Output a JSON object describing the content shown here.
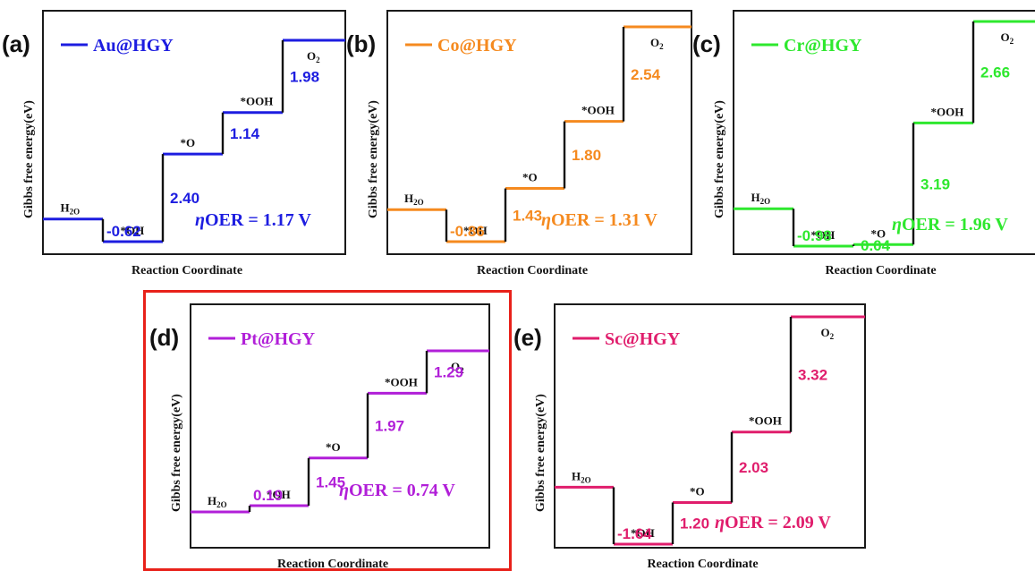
{
  "common": {
    "ylabel": "Gibbs free energy(eV)",
    "xlabel": "Reaction Coordinate",
    "eta_prefix": "η",
    "eta_word": "OER = "
  },
  "chart_data": [
    {
      "type": "line",
      "panel": "(a)",
      "title": "",
      "legend": "Au@HGY",
      "color": "#1d1de0",
      "xlabel": "Reaction Coordinate",
      "ylabel": "Gibbs free energy(eV)",
      "x": [
        "H2O",
        "*OH",
        "*O",
        "*OOH",
        "O2"
      ],
      "levels": [
        0,
        -0.62,
        1.78,
        2.92,
        4.9
      ],
      "step_labels": [
        "-0.62",
        "2.40",
        "1.14",
        "1.98"
      ],
      "overpotential": "1.17 V",
      "ylim": [
        -1.4,
        5.0
      ],
      "grid": false,
      "legend_position": "top-left"
    },
    {
      "type": "line",
      "panel": "(b)",
      "title": "",
      "legend": "Co@HGY",
      "color": "#f58a1f",
      "xlabel": "Reaction Coordinate",
      "ylabel": "Gibbs free energy(eV)",
      "x": [
        "H2O",
        "*OH",
        "*O",
        "*OOH",
        "O2"
      ],
      "levels": [
        0,
        -0.86,
        0.57,
        2.37,
        4.91
      ],
      "step_labels": [
        "-0.86",
        "1.43",
        "1.80",
        "2.54"
      ],
      "overpotential": "1.31 V",
      "ylim": [
        -1.4,
        5.0
      ],
      "grid": false,
      "legend_position": "top-left"
    },
    {
      "type": "line",
      "panel": "(c)",
      "title": "",
      "legend": "Cr@HGY",
      "color": "#2ee82e",
      "xlabel": "Reaction Coordinate",
      "ylabel": "Gibbs free energy(eV)",
      "x": [
        "H2O",
        "*OH",
        "*O",
        "*OOH",
        "O2"
      ],
      "levels": [
        0,
        -0.98,
        -0.94,
        2.25,
        4.91
      ],
      "step_labels": [
        "-0.98",
        "0.04",
        "3.19",
        "2.66"
      ],
      "overpotential": "1.96 V",
      "ylim": [
        -1.4,
        5.0
      ],
      "grid": false,
      "legend_position": "top-left"
    },
    {
      "type": "line",
      "panel": "(d)",
      "title": "",
      "legend": "Pt@HGY",
      "color": "#b11fd8",
      "xlabel": "Reaction Coordinate",
      "ylabel": "Gibbs free energy(eV)",
      "x": [
        "H2O",
        "*OH",
        "*O",
        "*OOH",
        "O2"
      ],
      "levels": [
        0,
        0.19,
        1.64,
        3.61,
        4.9
      ],
      "step_labels": [
        "0.19",
        "1.45",
        "1.97",
        "1.29"
      ],
      "overpotential": "0.74 V",
      "ylim": [
        -1.4,
        5.0
      ],
      "grid": false,
      "legend_position": "top-left"
    },
    {
      "type": "line",
      "panel": "(e)",
      "title": "",
      "legend": "Sc@HGY",
      "color": "#e01d6c",
      "xlabel": "Reaction Coordinate",
      "ylabel": "Gibbs free energy(eV)",
      "x": [
        "H2O",
        "*OH",
        "*O",
        "*OOH",
        "O2"
      ],
      "levels": [
        0,
        -1.64,
        -0.44,
        1.59,
        4.91
      ],
      "step_labels": [
        "-1.64",
        "1.20",
        "2.03",
        "3.32"
      ],
      "overpotential": "2.09 V",
      "ylim": [
        -2.2,
        5.5
      ],
      "grid": false,
      "legend_position": "top-left"
    }
  ]
}
